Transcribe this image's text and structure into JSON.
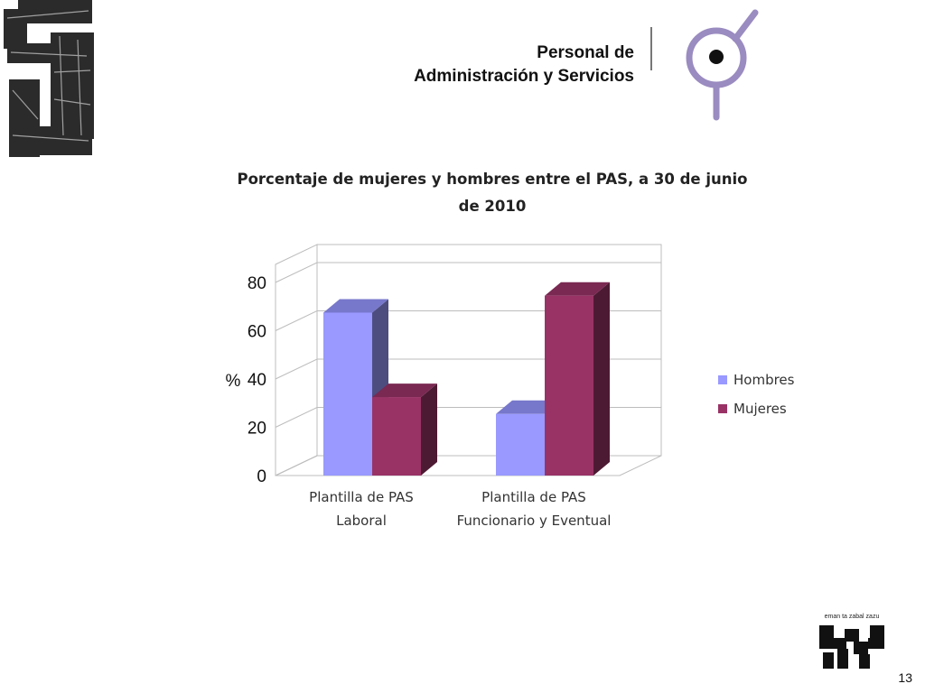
{
  "header": {
    "line1": "Personal de",
    "line2": "Administración y Servicios"
  },
  "chart_data": {
    "type": "bar",
    "title_line1": "Porcentaje de mujeres y hombres entre el PAS, a 30 de junio",
    "title_line2": "de 2010",
    "ylabel": "%",
    "xlabel": "",
    "ylim": [
      0,
      80
    ],
    "yticks": [
      0,
      20,
      40,
      60,
      80
    ],
    "grid": true,
    "legend_position": "right",
    "categories": [
      [
        "Plantilla de PAS",
        "Laboral"
      ],
      [
        "Plantilla de PAS",
        "Funcionario y Eventual"
      ]
    ],
    "series": [
      {
        "name": "Hombres",
        "values": [
          67.5,
          25.5
        ],
        "color": "#9999ff",
        "side_color": "#4d4d80",
        "top_color": "#7777cc"
      },
      {
        "name": "Mujeres",
        "values": [
          32.5,
          74.5
        ],
        "color": "#993366",
        "side_color": "#4d1a33",
        "top_color": "#7a2952"
      }
    ]
  },
  "footer": {
    "logo_motto": "eman ta zabal zazu",
    "page_number": "13"
  }
}
